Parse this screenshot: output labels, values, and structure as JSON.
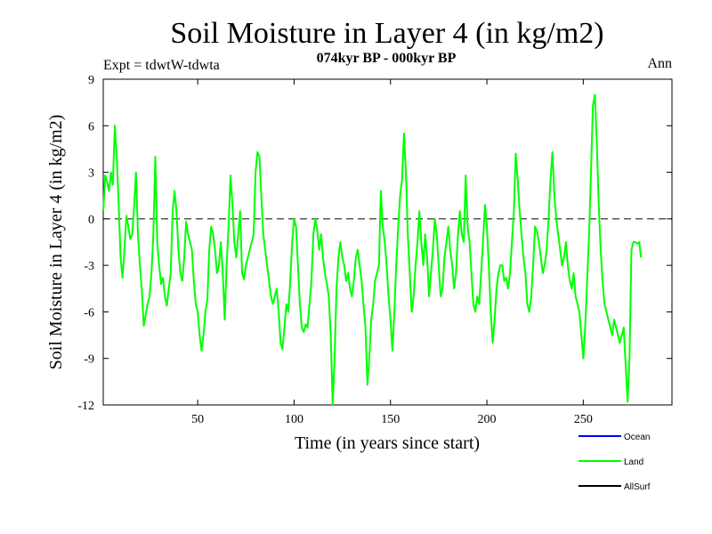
{
  "chart_data": {
    "type": "line",
    "title": "Soil Moisture in Layer 4 (in kg/m2)",
    "subtitle": "074kyr BP - 000kyr BP",
    "experiment": "Expt = tdwtW-tdwta",
    "season": "Ann",
    "xlabel": "Time (in years since start)",
    "ylabel": "Soil Moisture in Layer 4 (in kg/m2)",
    "xlim": [
      1,
      296
    ],
    "ylim": [
      -12,
      9
    ],
    "x_ticks": [
      50,
      100,
      150,
      200,
      250
    ],
    "y_ticks": [
      9,
      6,
      3,
      0,
      -3,
      -6,
      -9,
      -12
    ],
    "reference_line": 0,
    "legend": [
      {
        "name": "Ocean",
        "color": "#0000ff"
      },
      {
        "name": "Land",
        "color": "#00ff00"
      },
      {
        "name": "AllSurf",
        "color": "#000000"
      }
    ],
    "series": [
      {
        "name": "Land",
        "color": "#00ff00",
        "x_start": 1,
        "x_step": 1,
        "values": [
          0.5,
          2.8,
          2.4,
          1.8,
          3.0,
          2.2,
          6.0,
          4.0,
          1.0,
          -2.5,
          -3.8,
          -2.0,
          0.2,
          -0.5,
          -1.3,
          -1.0,
          0.8,
          3.0,
          -1.0,
          -3.0,
          -4.5,
          -6.9,
          -6.2,
          -5.5,
          -5.0,
          -3.5,
          -1.0,
          4.0,
          -1.5,
          -3.0,
          -4.2,
          -3.8,
          -5.0,
          -5.6,
          -4.5,
          -3.5,
          0.5,
          1.8,
          0.5,
          -2.0,
          -3.5,
          -4.0,
          -2.5,
          -0.2,
          -1.0,
          -1.5,
          -2.0,
          -4.0,
          -5.5,
          -6.0,
          -7.5,
          -8.5,
          -7.5,
          -6.0,
          -5.2,
          -2.0,
          -0.5,
          -1.0,
          -2.0,
          -3.5,
          -3.0,
          -1.5,
          -3.5,
          -6.5,
          -3.0,
          -0.5,
          2.8,
          1.0,
          -1.5,
          -2.5,
          -1.0,
          0.5,
          -3.5,
          -3.9,
          -3.0,
          -2.5,
          -2.0,
          -1.5,
          -1.0,
          3.0,
          4.3,
          4.0,
          1.5,
          -1.0,
          -2.0,
          -3.0,
          -4.0,
          -5.0,
          -5.5,
          -5.0,
          -4.5,
          -6.0,
          -8.0,
          -8.4,
          -7.0,
          -5.5,
          -6.0,
          -4.0,
          -1.5,
          0.0,
          -0.5,
          -3.0,
          -5.5,
          -7.0,
          -7.3,
          -6.8,
          -7.0,
          -5.5,
          -4.0,
          -1.0,
          0.0,
          -0.7,
          -2.0,
          -1.0,
          -2.5,
          -3.5,
          -4.2,
          -5.0,
          -7.5,
          -12.0,
          -9.0,
          -4.5,
          -2.5,
          -1.5,
          -2.5,
          -3.0,
          -4.0,
          -3.5,
          -4.5,
          -5.0,
          -4.0,
          -2.5,
          -2.0,
          -3.0,
          -4.0,
          -5.5,
          -7.0,
          -10.7,
          -9.0,
          -6.5,
          -5.5,
          -4.0,
          -3.5,
          -3.0,
          1.8,
          -0.5,
          -1.5,
          -3.0,
          -5.0,
          -6.5,
          -8.5,
          -6.0,
          -3.0,
          -0.5,
          1.5,
          2.5,
          5.5,
          3.0,
          -1.0,
          -3.5,
          -6.0,
          -5.0,
          -3.0,
          -1.5,
          0.5,
          -1.5,
          -3.0,
          -1.0,
          -2.5,
          -5.0,
          -3.5,
          -2.0,
          0.0,
          -1.0,
          -3.0,
          -5.0,
          -4.5,
          -2.5,
          -1.5,
          -0.5,
          -2.0,
          -3.0,
          -4.5,
          -3.5,
          -1.0,
          0.5,
          -1.0,
          -1.5,
          2.8,
          -0.5,
          -1.5,
          -3.5,
          -5.5,
          -6.0,
          -5.0,
          -5.5,
          -3.5,
          -1.5,
          0.9,
          -0.5,
          -3.0,
          -6.0,
          -8.0,
          -6.5,
          -4.5,
          -3.5,
          -3.0,
          -3.0,
          -4.0,
          -3.8,
          -4.5,
          -3.5,
          -1.5,
          0.5,
          4.2,
          2.5,
          0.5,
          -1.0,
          -2.5,
          -3.5,
          -5.5,
          -6.0,
          -5.0,
          -3.0,
          -0.5,
          -0.8,
          -1.5,
          -2.5,
          -3.5,
          -3.0,
          -2.0,
          0.0,
          2.5,
          4.3,
          1.5,
          0.0,
          -1.0,
          -2.0,
          -3.0,
          -2.5,
          -1.5,
          -3.0,
          -4.0,
          -4.5,
          -3.5,
          -5.0,
          -5.5,
          -6.0,
          -7.5,
          -9.0,
          -7.0,
          -4.0,
          -1.0,
          3.0,
          7.3,
          8.0,
          5.0,
          1.0,
          -2.0,
          -4.0,
          -5.5,
          -6.0,
          -6.5,
          -7.0,
          -7.5,
          -6.5,
          -7.0,
          -7.5,
          -8.0,
          -7.5,
          -7.0,
          -9.5,
          -11.8,
          -9.0,
          -2.0,
          -1.5,
          -1.5,
          -1.6,
          -1.5,
          -2.5
        ]
      }
    ]
  }
}
